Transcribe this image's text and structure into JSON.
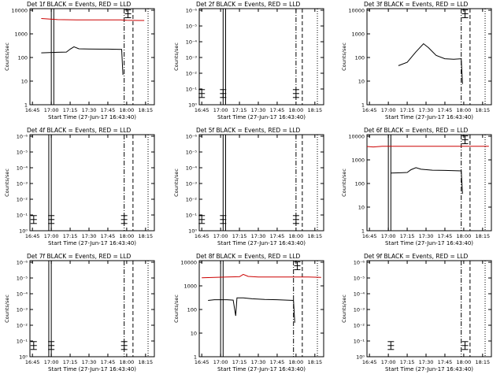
{
  "colors": {
    "events": "#000000",
    "lld": "#cc0000",
    "background": "#ffffff",
    "axis": "#000000"
  },
  "chart_data": [
    {
      "type": "line",
      "title": "Det 1f BLACK = Events, RED = LLD",
      "xlabel": "Start Time (27-Jun-17 16:43:40)",
      "ylabel": "Counts/sec",
      "yscale": "log",
      "ylim": [
        1,
        15000
      ],
      "yticks": [
        "1",
        "10",
        "100",
        "1000",
        "10000"
      ],
      "xlim": [
        "16:43",
        "18:22"
      ],
      "xticks": [
        "16:45",
        "17:00",
        "17:15",
        "17:30",
        "17:45",
        "18:00",
        "18:15"
      ],
      "series": [
        {
          "name": "Events",
          "color": "#000000",
          "points": [
            [
              "16:52",
              180
            ],
            [
              "17:05",
              190
            ],
            [
              "17:12",
              195
            ],
            [
              "17:15",
              260
            ],
            [
              "17:18",
              330
            ],
            [
              "17:22",
              270
            ],
            [
              "17:30",
              265
            ],
            [
              "17:45",
              260
            ],
            [
              "17:56",
              255
            ],
            [
              "17:57",
              20
            ]
          ]
        },
        {
          "name": "LLD",
          "color": "#cc0000",
          "points": [
            [
              "16:52",
              5600
            ],
            [
              "17:05",
              5000
            ],
            [
              "17:20",
              4900
            ],
            [
              "17:40",
              4850
            ],
            [
              "17:55",
              4900
            ],
            [
              "18:00",
              4700
            ],
            [
              "18:10",
              4600
            ],
            [
              "18:14",
              4600
            ]
          ]
        }
      ],
      "markers": {
        "solid": [
          "17:00",
          "17:02"
        ],
        "dashdot": [
          "17:58"
        ],
        "dashed": [
          "18:05"
        ],
        "dotted": [
          "18:17"
        ]
      },
      "error_bars": [
        {
          "x": "18:01",
          "y": 9000
        }
      ]
    },
    {
      "type": "line",
      "title": "Det 2f BLACK = Events, RED = LLD",
      "xlabel": "Start Time (27-Jun-17 16:43:40)",
      "ylabel": "Counts/sec",
      "yscale": "log",
      "ylim": [
        1,
        1000000
      ],
      "yticks": [
        "10⁰",
        "10⁻¹",
        "10⁻²",
        "10⁻³",
        "10⁻⁴",
        "10⁻⁵",
        "10⁻⁶"
      ],
      "xlim": [
        "16:43",
        "18:22"
      ],
      "xticks": [
        "16:45",
        "17:00",
        "17:15",
        "17:30",
        "17:45",
        "18:00",
        "18:15"
      ],
      "series": [],
      "markers": {
        "solid": [
          "17:02",
          "17:04"
        ],
        "dashdot": [
          "18:00"
        ],
        "dashed": [
          "18:05"
        ],
        "dotted": [
          "18:17"
        ]
      },
      "error_bars": [
        {
          "x": "16:45",
          "y": 5
        },
        {
          "x": "17:02",
          "y": 5
        },
        {
          "x": "18:00",
          "y": 5
        }
      ]
    },
    {
      "type": "line",
      "title": "Det 3f BLACK = Events, RED = LLD",
      "xlabel": "Start Time (27-Jun-17 16:43:40)",
      "ylabel": "Counts/sec",
      "yscale": "log",
      "ylim": [
        1,
        15000
      ],
      "yticks": [
        "1",
        "10",
        "100",
        "1000",
        "10000"
      ],
      "xlim": [
        "16:43",
        "18:22"
      ],
      "xticks": [
        "16:45",
        "17:00",
        "17:15",
        "17:30",
        "17:45",
        "18:00",
        "18:15"
      ],
      "series": [
        {
          "name": "Events",
          "color": "#000000",
          "points": [
            [
              "17:08",
              50
            ],
            [
              "17:15",
              70
            ],
            [
              "17:22",
              200
            ],
            [
              "17:28",
              450
            ],
            [
              "17:32",
              300
            ],
            [
              "17:38",
              140
            ],
            [
              "17:45",
              100
            ],
            [
              "17:52",
              95
            ],
            [
              "17:58",
              100
            ],
            [
              "17:59",
              8
            ]
          ]
        }
      ],
      "markers": {
        "solid": [],
        "dashdot": [
          "17:58"
        ],
        "dashed": [
          "18:05"
        ],
        "dotted": [
          "18:17"
        ]
      },
      "error_bars": [
        {
          "x": "18:01",
          "y": 9000
        }
      ]
    },
    {
      "type": "line",
      "title": "Det 4f BLACK = Events, RED = LLD",
      "xlabel": "Start Time (27-Jun-17 16:43:40)",
      "ylabel": "Counts/sec",
      "yscale": "log",
      "ylim": [
        1,
        1000000
      ],
      "yticks": [
        "10⁰",
        "10⁻¹",
        "10⁻²",
        "10⁻³",
        "10⁻⁴",
        "10⁻⁵",
        "10⁻⁶"
      ],
      "xlim": [
        "16:43",
        "18:22"
      ],
      "xticks": [
        "16:45",
        "17:00",
        "17:15",
        "17:30",
        "17:45",
        "18:00",
        "18:15"
      ],
      "series": [],
      "markers": {
        "solid": [
          "16:58",
          "17:00"
        ],
        "dashdot": [
          "17:58"
        ],
        "dashed": [
          "18:05"
        ],
        "dotted": [
          "18:17"
        ]
      },
      "error_bars": [
        {
          "x": "16:46",
          "y": 5
        },
        {
          "x": "17:00",
          "y": 5
        },
        {
          "x": "17:58",
          "y": 5
        }
      ]
    },
    {
      "type": "line",
      "title": "Det 5f BLACK = Events, RED = LLD",
      "xlabel": "Start Time (27-Jun-17 16:43:40)",
      "ylabel": "Counts/sec",
      "yscale": "log",
      "ylim": [
        1,
        1000000
      ],
      "yticks": [
        "10⁰",
        "10⁻¹",
        "10⁻²",
        "10⁻³",
        "10⁻⁴",
        "10⁻⁵",
        "10⁻⁶"
      ],
      "xlim": [
        "16:43",
        "18:22"
      ],
      "xticks": [
        "16:45",
        "17:00",
        "17:15",
        "17:30",
        "17:45",
        "18:00",
        "18:15"
      ],
      "series": [],
      "markers": {
        "solid": [
          "17:02",
          "17:04"
        ],
        "dashdot": [
          "18:00"
        ],
        "dashed": [
          "18:05"
        ],
        "dotted": [
          "18:17"
        ]
      },
      "error_bars": [
        {
          "x": "16:45",
          "y": 5
        },
        {
          "x": "17:02",
          "y": 5
        },
        {
          "x": "18:00",
          "y": 5
        }
      ]
    },
    {
      "type": "line",
      "title": "Det 6f BLACK = Events, RED = LLD",
      "xlabel": "Start Time (27-Jun-17 16:43:40)",
      "ylabel": "Counts/sec",
      "yscale": "log",
      "ylim": [
        1,
        15000
      ],
      "yticks": [
        "1",
        "10",
        "100",
        "1000",
        "10000"
      ],
      "xlim": [
        "16:43",
        "18:22"
      ],
      "xticks": [
        "16:45",
        "17:00",
        "17:15",
        "17:30",
        "17:45",
        "18:00",
        "18:15"
      ],
      "series": [
        {
          "name": "Events",
          "color": "#000000",
          "points": [
            [
              "17:02",
              320
            ],
            [
              "17:10",
              330
            ],
            [
              "17:15",
              340
            ],
            [
              "17:18",
              450
            ],
            [
              "17:22",
              550
            ],
            [
              "17:26",
              470
            ],
            [
              "17:35",
              430
            ],
            [
              "17:45",
              420
            ],
            [
              "17:58",
              400
            ],
            [
              "17:59",
              40
            ]
          ]
        },
        {
          "name": "LLD",
          "color": "#cc0000",
          "points": [
            [
              "16:43",
              4600
            ],
            [
              "16:48",
              4400
            ],
            [
              "16:55",
              4700
            ],
            [
              "17:10",
              4700
            ],
            [
              "17:30",
              4700
            ],
            [
              "17:50",
              4700
            ],
            [
              "18:10",
              4700
            ],
            [
              "18:20",
              4700
            ]
          ]
        }
      ],
      "markers": {
        "solid": [
          "17:00",
          "17:02"
        ],
        "dashdot": [
          "17:58"
        ],
        "dashed": [
          "18:05"
        ],
        "dotted": [
          "18:17"
        ]
      },
      "error_bars": [
        {
          "x": "18:01",
          "y": 9000
        }
      ]
    },
    {
      "type": "line",
      "title": "Det 7f BLACK = Events, RED = LLD",
      "xlabel": "Start Time (27-Jun-17 16:43:40)",
      "ylabel": "Counts/sec",
      "yscale": "log",
      "ylim": [
        1,
        1000000
      ],
      "yticks": [
        "10⁰",
        "10⁻¹",
        "10⁻²",
        "10⁻³",
        "10⁻⁴",
        "10⁻⁵",
        "10⁻⁶"
      ],
      "xlim": [
        "16:43",
        "18:22"
      ],
      "xticks": [
        "16:45",
        "17:00",
        "17:15",
        "17:30",
        "17:45",
        "18:00",
        "18:15"
      ],
      "series": [],
      "markers": {
        "solid": [
          "16:58",
          "17:00"
        ],
        "dashdot": [
          "17:58"
        ],
        "dashed": [
          "18:05"
        ],
        "dotted": [
          "18:17"
        ]
      },
      "error_bars": [
        {
          "x": "16:46",
          "y": 5
        },
        {
          "x": "17:00",
          "y": 5
        },
        {
          "x": "17:58",
          "y": 5
        }
      ]
    },
    {
      "type": "line",
      "title": "Det 8f BLACK = Events, RED = LLD",
      "xlabel": "Start Time (27-Jun-17 16:43:40)",
      "ylabel": "Counts/sec",
      "yscale": "log",
      "ylim": [
        1,
        15000
      ],
      "yticks": [
        "1",
        "10",
        "100",
        "1000",
        "10000"
      ],
      "xlim": [
        "16:43",
        "18:22"
      ],
      "xticks": [
        "16:45",
        "17:00",
        "17:15",
        "17:30",
        "17:45",
        "18:00",
        "18:15"
      ],
      "series": [
        {
          "name": "Events",
          "color": "#000000",
          "points": [
            [
              "16:50",
              280
            ],
            [
              "16:55",
              300
            ],
            [
              "17:05",
              300
            ],
            [
              "17:10",
              290
            ],
            [
              "17:12",
              60
            ],
            [
              "17:13",
              360
            ],
            [
              "17:18",
              360
            ],
            [
              "17:25",
              330
            ],
            [
              "17:35",
              310
            ],
            [
              "17:45",
              300
            ],
            [
              "17:58",
              280
            ],
            [
              "17:59",
              30
            ]
          ]
        },
        {
          "name": "LLD",
          "color": "#cc0000",
          "points": [
            [
              "16:45",
              2700
            ],
            [
              "16:55",
              2800
            ],
            [
              "17:05",
              2900
            ],
            [
              "17:15",
              3000
            ],
            [
              "17:18",
              3800
            ],
            [
              "17:22",
              3100
            ],
            [
              "17:30",
              2900
            ],
            [
              "17:45",
              2900
            ],
            [
              "17:58",
              2900
            ],
            [
              "18:10",
              2900
            ],
            [
              "18:20",
              2800
            ]
          ]
        }
      ],
      "markers": {
        "solid": [
          "17:00",
          "17:02"
        ],
        "dashdot": [
          "17:58"
        ],
        "dashed": [
          "18:05"
        ],
        "dotted": [
          "18:17"
        ]
      },
      "error_bars": [
        {
          "x": "18:01",
          "y": 9000
        }
      ]
    },
    {
      "type": "line",
      "title": "Det 9f BLACK = Events, RED = LLD",
      "xlabel": "Start Time (27-Jun-17 16:43:40)",
      "ylabel": "Counts/sec",
      "yscale": "log",
      "ylim": [
        1,
        1000000
      ],
      "yticks": [
        "10⁰",
        "10⁻¹",
        "10⁻²",
        "10⁻³",
        "10⁻⁴",
        "10⁻⁵",
        "10⁻⁶"
      ],
      "xlim": [
        "16:43",
        "18:22"
      ],
      "xticks": [
        "16:45",
        "17:00",
        "17:15",
        "17:30",
        "17:45",
        "18:00",
        "18:15"
      ],
      "series": [],
      "markers": {
        "solid": [],
        "dashdot": [
          "17:58"
        ],
        "dashed": [
          "18:05"
        ],
        "dotted": [
          "18:17"
        ]
      },
      "error_bars": [
        {
          "x": "17:02",
          "y": 5
        },
        {
          "x": "18:01",
          "y": 5
        }
      ]
    }
  ]
}
